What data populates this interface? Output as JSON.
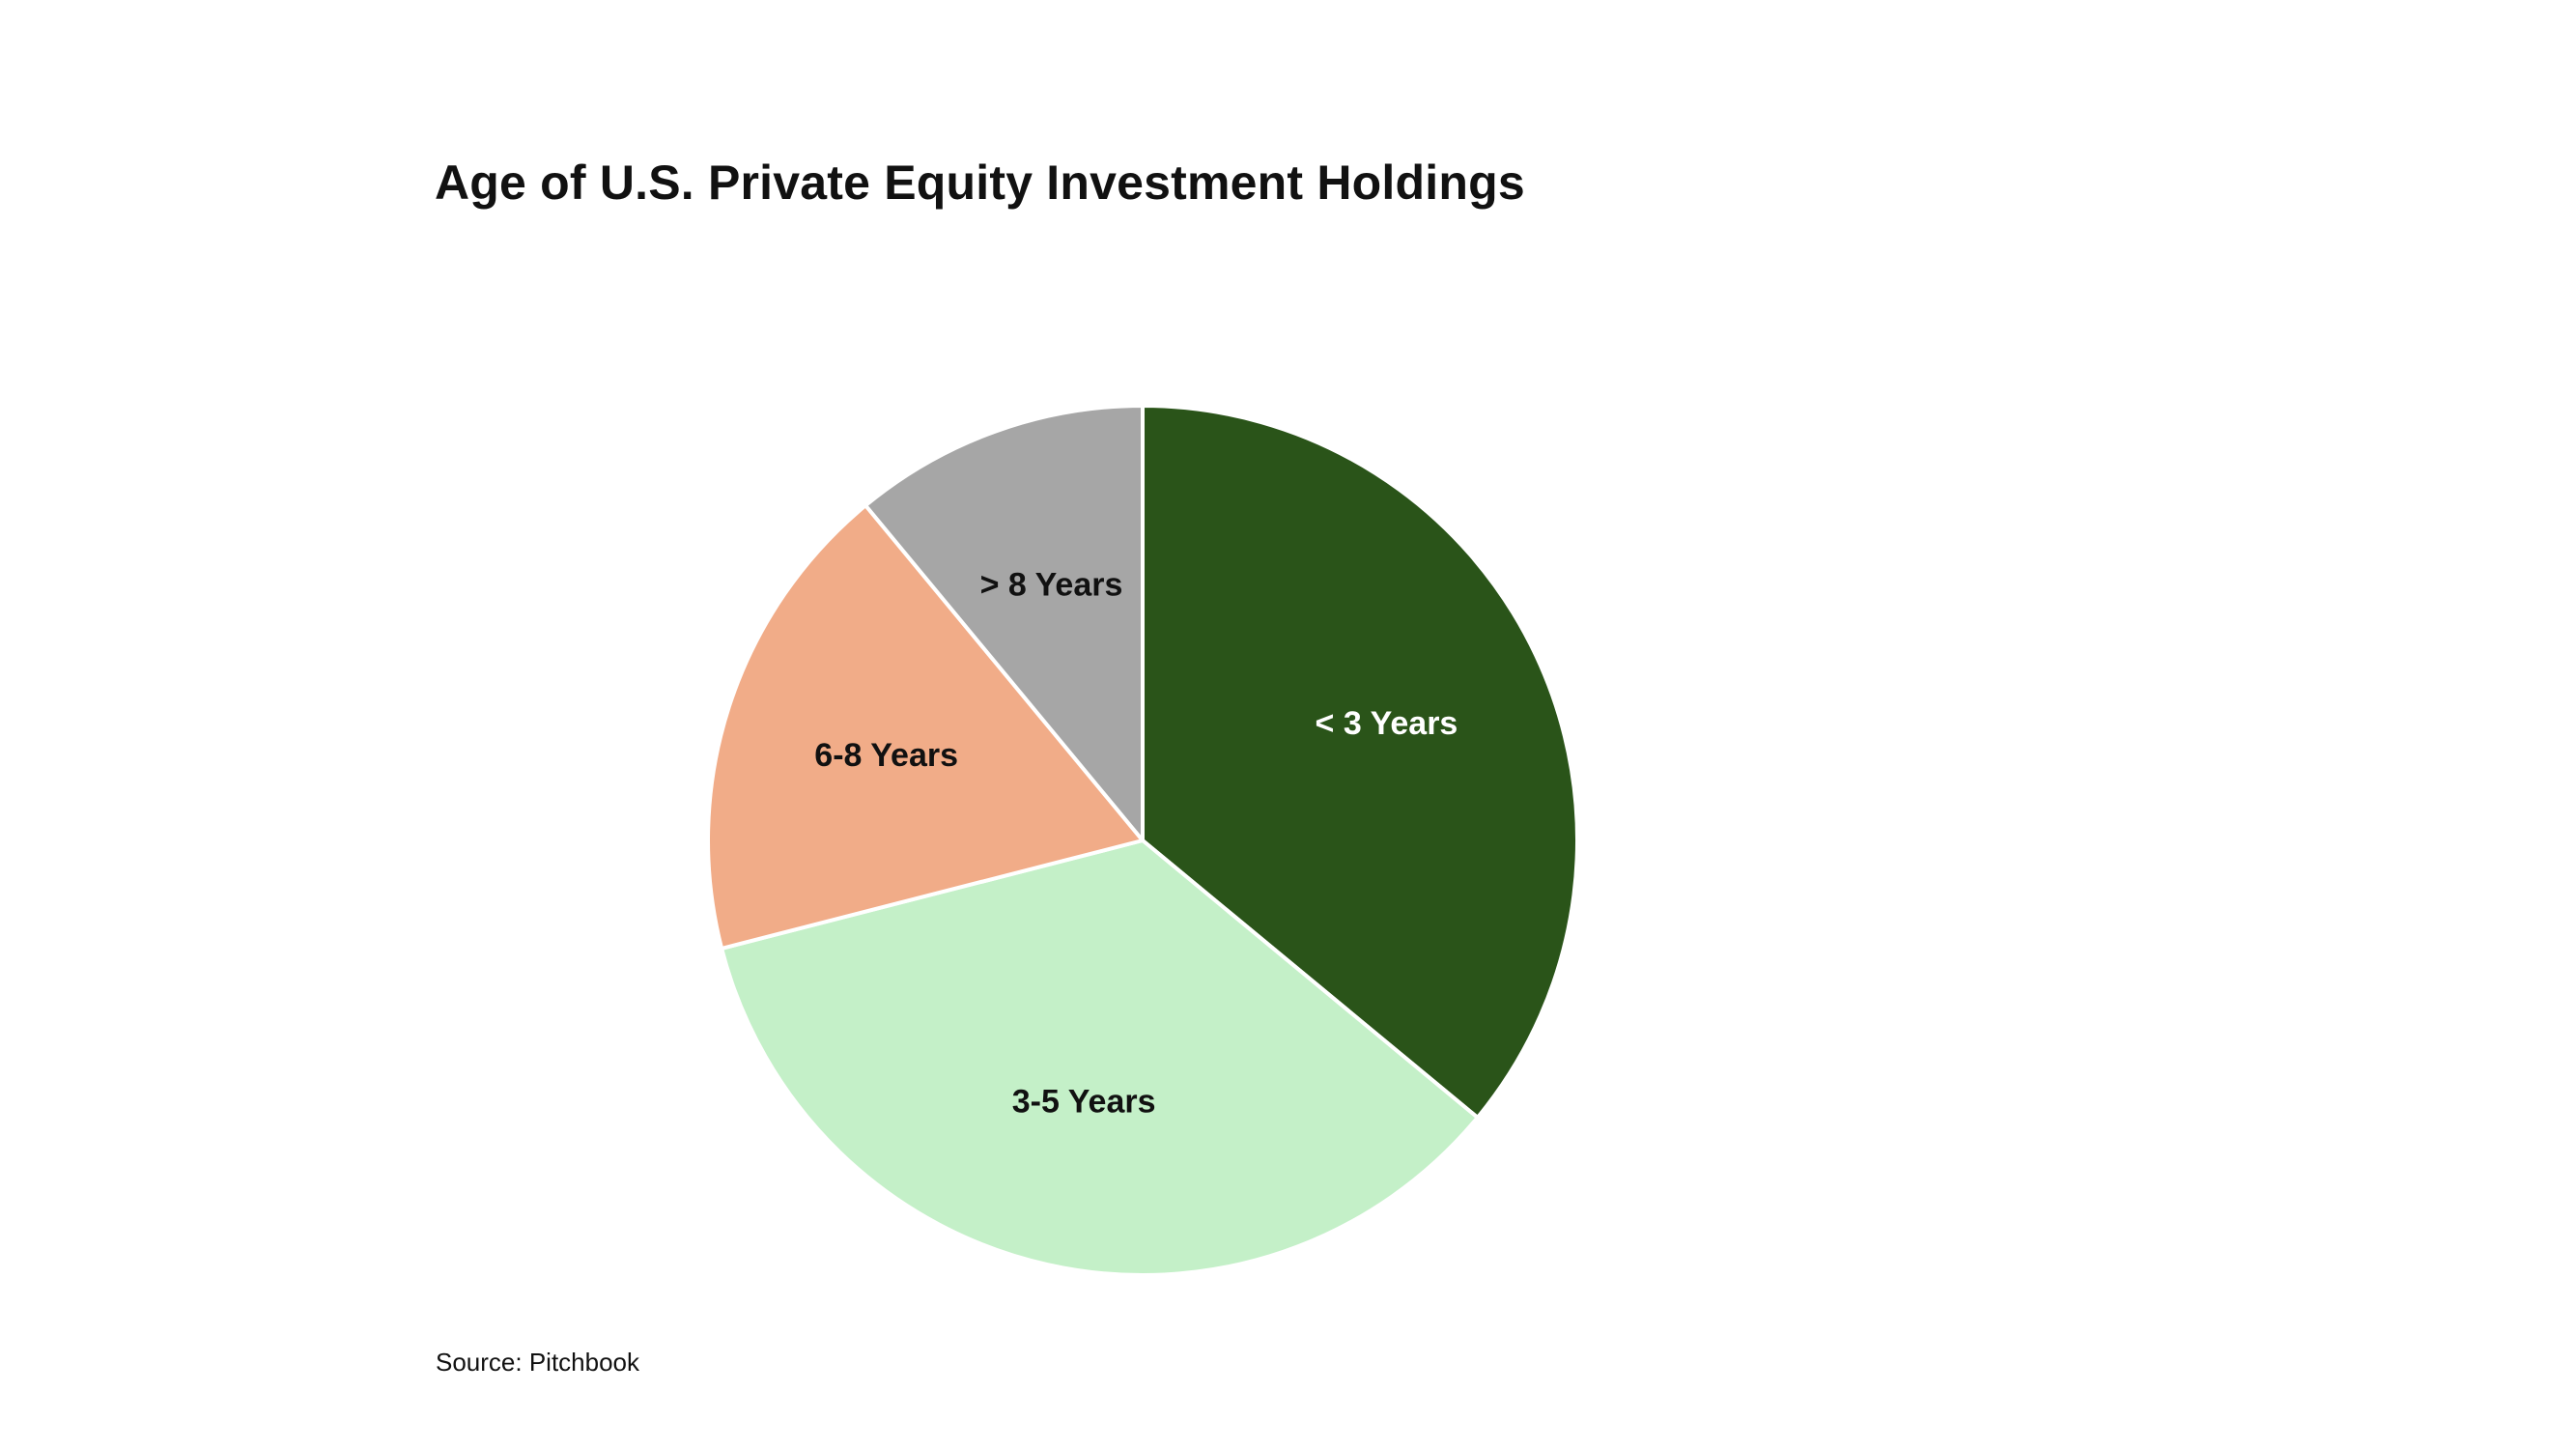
{
  "chart_data": {
    "type": "pie",
    "title": "Age of U.S. Private Equity Investment Holdings",
    "source": "Source: Pitchbook",
    "start_angle_deg": 0,
    "direction": "clockwise",
    "slices": [
      {
        "label": "< 3 Years",
        "value": 36,
        "color": "#2a5419",
        "label_color": "#ffffff"
      },
      {
        "label": "3-5 Years",
        "value": 35,
        "color": "#c4f0c8",
        "label_color": "#111111"
      },
      {
        "label": "6-8 Years",
        "value": 18,
        "color": "#f1ac88",
        "label_color": "#111111"
      },
      {
        "label": "> 8 Years",
        "value": 11,
        "color": "#a6a6a6",
        "label_color": "#111111"
      }
    ],
    "legend": "none",
    "grid": false
  }
}
